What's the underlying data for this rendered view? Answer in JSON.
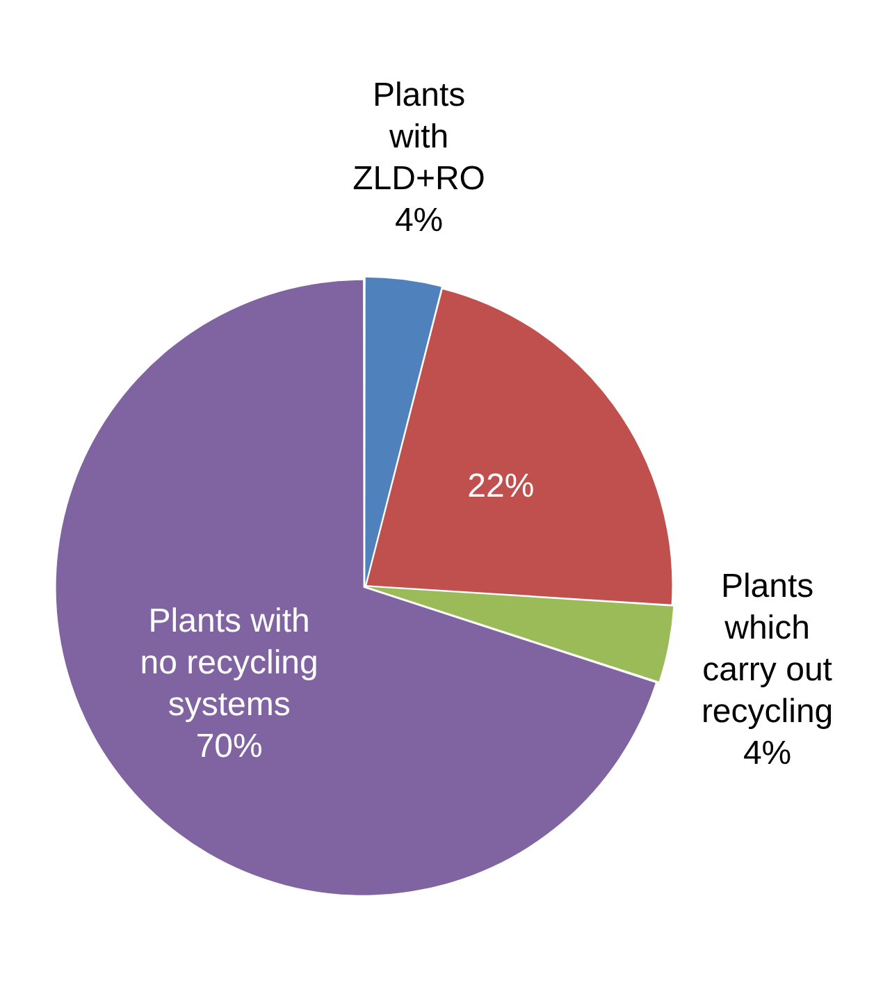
{
  "chart_data": {
    "type": "pie",
    "categories": [
      "Plants with ZLD+RO",
      null,
      "Plants which carry out recycling",
      "Plants with no recycling systems"
    ],
    "values": [
      4,
      22,
      4,
      70
    ],
    "colors": [
      "#4f81bd",
      "#c0504d",
      "#9bbb59",
      "#8064a2"
    ],
    "value_labels": [
      "4%",
      "22%",
      "4%",
      "70%"
    ],
    "legend": false
  }
}
